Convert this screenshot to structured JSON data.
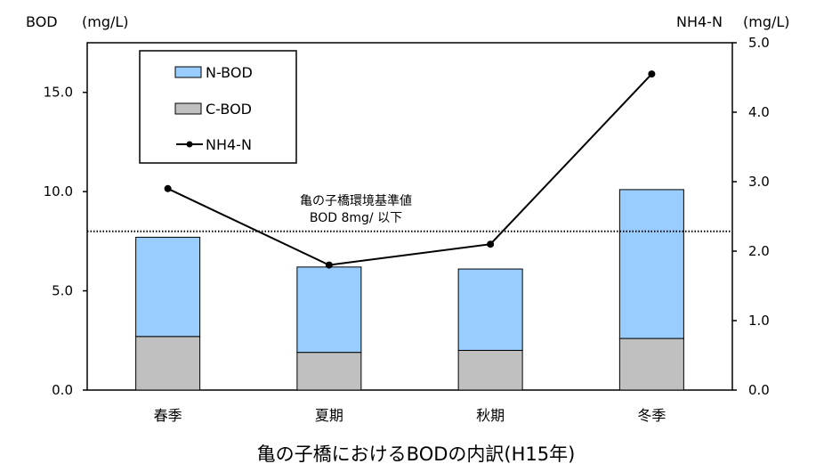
{
  "chart_data": {
    "type": "bar",
    "stacked": true,
    "categories": [
      "春季",
      "夏期",
      "秋期",
      "冬季"
    ],
    "series": [
      {
        "name": "C-BOD",
        "type": "bar",
        "axis": "left",
        "color": "#c0c0c0",
        "values": [
          2.7,
          1.9,
          2.0,
          2.6
        ]
      },
      {
        "name": "N-BOD",
        "type": "bar",
        "axis": "left",
        "color": "#99ccff",
        "values": [
          5.0,
          4.3,
          4.1,
          7.5
        ]
      },
      {
        "name": "NH4-N",
        "type": "line",
        "axis": "right",
        "color": "#000000",
        "values": [
          2.9,
          1.8,
          2.1,
          4.55
        ]
      }
    ],
    "left_axis": {
      "label": "BOD",
      "unit": "(mg/L)",
      "ylim": [
        0,
        17.5
      ],
      "ticks": [
        "0.0",
        "5.0",
        "10.0",
        "15.0"
      ],
      "tick_values": [
        0,
        5,
        10,
        15
      ]
    },
    "right_axis": {
      "label": "NH4-N",
      "unit": "(mg/L)",
      "ylim": [
        0,
        5
      ],
      "ticks": [
        "0.0",
        "1.0",
        "2.0",
        "3.0",
        "4.0",
        "5.0"
      ],
      "tick_values": [
        0,
        1,
        2,
        3,
        4,
        5
      ]
    },
    "reference_line": {
      "value": 8,
      "axis": "left",
      "style": "dotted",
      "label_line1": "亀の子橋環境基準値",
      "label_line2": "BOD 8mg/ 以下"
    },
    "legend": {
      "position": "top-left",
      "items": [
        "N-BOD",
        "C-BOD",
        "NH4-N"
      ]
    },
    "title": "亀の子橋におけるBODの内訳(H15年)",
    "grid": false
  }
}
